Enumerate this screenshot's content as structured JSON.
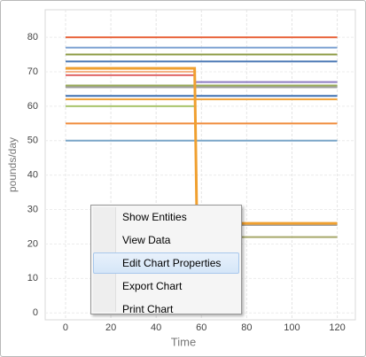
{
  "chart_data": {
    "type": "line",
    "y_label": "pounds/day",
    "x_label": "Time",
    "x": [
      0,
      57,
      58,
      120
    ],
    "xlim": [
      -9,
      128
    ],
    "xticks": [
      0,
      20,
      40,
      60,
      80,
      100,
      120
    ],
    "ylim": [
      -2,
      88
    ],
    "yticks": [
      0,
      10,
      20,
      30,
      40,
      50,
      60,
      70,
      80
    ],
    "grid": true,
    "series": [
      {
        "color": "#e8643c",
        "values": [
          80,
          80,
          80,
          80
        ]
      },
      {
        "color": "#7fa3d3",
        "values": [
          77,
          77,
          77,
          77
        ]
      },
      {
        "color": "#8c9b43",
        "values": [
          75,
          75,
          75,
          75
        ]
      },
      {
        "color": "#4a78b5",
        "values": [
          73,
          73,
          73,
          73
        ]
      },
      {
        "color": "#f4b183",
        "values": [
          70,
          70,
          null,
          null
        ]
      },
      {
        "color": "#e06666",
        "values": [
          69,
          69,
          null,
          null
        ]
      },
      {
        "color": "#8e7cc3",
        "values": [
          null,
          67,
          67,
          67
        ]
      },
      {
        "color": "#9aab5a",
        "values": [
          66,
          66,
          66,
          66
        ]
      },
      {
        "color": "#a0a0a0",
        "values": [
          65.5,
          65.5,
          65.5,
          65.5
        ]
      },
      {
        "color": "#3d6fb0",
        "values": [
          63,
          63,
          63,
          63
        ]
      },
      {
        "color": "#f2a33a",
        "values": [
          62,
          62,
          62,
          62
        ]
      },
      {
        "color": "#a9c46c",
        "values": [
          60,
          60,
          null,
          null
        ]
      },
      {
        "color": "#f08c3c",
        "values": [
          55,
          55,
          55,
          55
        ]
      },
      {
        "color": "#7aa6c8",
        "values": [
          50,
          50,
          50,
          50
        ]
      },
      {
        "color": "#a0a0a0",
        "values": [
          null,
          null,
          25.5,
          25.5
        ]
      },
      {
        "color": "#a6a86a",
        "values": [
          null,
          null,
          22,
          22
        ]
      },
      {
        "color": "#f0a030",
        "values": [
          71,
          71,
          26,
          26
        ]
      }
    ]
  },
  "context_menu": {
    "items": [
      "Show Entities",
      "View Data",
      "Edit Chart Properties",
      "Export Chart",
      "Print Chart"
    ],
    "highlighted": 2
  }
}
